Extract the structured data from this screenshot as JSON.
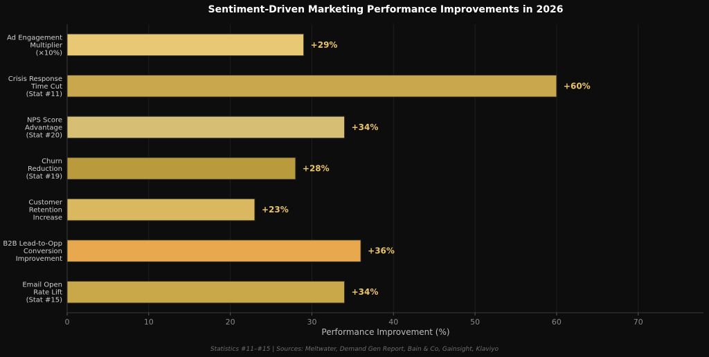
{
  "chart_data": {
    "type": "bar",
    "orientation": "horizontal",
    "title": "Sentiment-Driven Marketing Performance Improvements in 2026",
    "xlabel": "Performance Improvement (%)",
    "ylabel": "",
    "xlim": [
      0,
      78
    ],
    "xticks": [
      0,
      10,
      20,
      30,
      40,
      50,
      60,
      70
    ],
    "grid": true,
    "categories": [
      [
        "Ad Engagement",
        "Multiplier",
        "(×10%)"
      ],
      [
        "Crisis Response",
        "Time Cut",
        "(Stat #11)"
      ],
      [
        "NPS Score",
        "Advantage",
        "(Stat #20)"
      ],
      [
        "Churn",
        "Reduction",
        "(Stat #19)"
      ],
      [
        "Customer",
        "Retention",
        "Increase"
      ],
      [
        "B2B Lead-to-Opp",
        "Conversion",
        "Improvement"
      ],
      [
        "Email Open",
        "Rate Lift",
        "(Stat #15)"
      ]
    ],
    "values": [
      29,
      60,
      34,
      28,
      23,
      36,
      34
    ],
    "value_labels": [
      "+29%",
      "+60%",
      "+34%",
      "+28%",
      "+23%",
      "+36%",
      "+34%"
    ],
    "colors": [
      "#e8c874",
      "#c9a74c",
      "#d6bf74",
      "#b99a3c",
      "#d9b860",
      "#e8a84e",
      "#c9a84a"
    ],
    "footnote": "Statistics #11–#15 | Sources: Meltwater, Demand Gen Report, Bain & Co, Gainsight, Klaviyo"
  }
}
